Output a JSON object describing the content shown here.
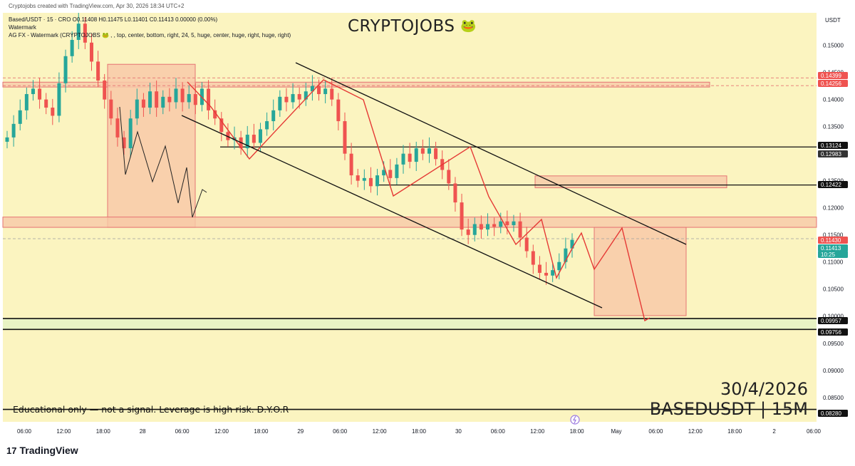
{
  "header": {
    "created": "Cryptojobs created with TradingView.com, Apr 30, 2026 18:34 UTC+2",
    "symbol_line": "Based/USDT · 15 · CRO  O0.11408  H0.11475  L0.11401  C0.11413  0.00000 (0.00%)",
    "watermark": "Watermark",
    "indicator_line": "AG FX - Watermark (CRYPTOJOBS 🐸 , , top, center, bottom, right, 24, 5, huge, center, huge, right, huge, right)"
  },
  "brand": {
    "text": "CRYPTOJOBS",
    "emoji": "🐸"
  },
  "disclaimer": "Educational only — not a signal. Leverage is high risk. D.Y.O.R",
  "stamp": {
    "date": "30/4/2026",
    "symbol": "BASEDUSDT | 15M"
  },
  "footer": {
    "logo": "TradingView"
  },
  "colors": {
    "plot_bg": "#fbf4c0",
    "up": "#26a69a",
    "down": "#ef5350",
    "zone_fill": "#f8c9a8",
    "zone_stroke": "#e57373",
    "green_zone": "#e3f2c4",
    "path_red": "#e53935"
  },
  "chart_data": {
    "type": "candlestick",
    "symbol": "Based/USDT",
    "interval": "15",
    "ohlc_last": {
      "open": 0.11408,
      "high": 0.11475,
      "low": 0.11401,
      "close": 0.11413
    },
    "y_axis": {
      "unit": "USDT",
      "range": [
        0.0805,
        0.156
      ],
      "ticks": [
        "0.15000",
        "0.14500",
        "0.14000",
        "0.13500",
        "0.13000",
        "0.12500",
        "0.12000",
        "0.11500",
        "0.11000",
        "0.10500",
        "0.10000",
        "0.09500",
        "0.09000",
        "0.08500"
      ]
    },
    "x_axis": {
      "ticks": [
        "06:00",
        "12:00",
        "18:00",
        "28",
        "06:00",
        "12:00",
        "18:00",
        "29",
        "06:00",
        "12:00",
        "18:00",
        "30",
        "06:00",
        "12:00",
        "18:00",
        "May",
        "06:00",
        "12:00",
        "18:00",
        "2",
        "06:00"
      ]
    },
    "price_labels": [
      {
        "value": "0.14399",
        "style": "red"
      },
      {
        "value": "0.14256",
        "style": "red"
      },
      {
        "value": "0.13124",
        "style": "black"
      },
      {
        "value": "0.12983",
        "style": "dark"
      },
      {
        "value": "0.12422",
        "style": "black"
      },
      {
        "value": "0.11430",
        "style": "red"
      },
      {
        "value": "0.11413",
        "style": "green"
      },
      {
        "value": "10:25",
        "style": "green"
      },
      {
        "value": "0.09957",
        "style": "black"
      },
      {
        "value": "0.09756",
        "style": "black"
      },
      {
        "value": "0.08280",
        "style": "black"
      }
    ],
    "horizontal_levels": [
      {
        "price": 0.14399,
        "style": "dashed"
      },
      {
        "price": 0.14256,
        "style": "dashed"
      },
      {
        "price": 0.13124,
        "style": "solid"
      },
      {
        "price": 0.12422,
        "style": "solid"
      },
      {
        "price": 0.1143,
        "style": "dashed"
      },
      {
        "price": 0.09957,
        "style": "solid"
      },
      {
        "price": 0.09756,
        "style": "solid"
      },
      {
        "price": 0.0828,
        "style": "solid"
      }
    ],
    "zones": [
      {
        "kind": "supply",
        "price_low": 0.1423,
        "price_high": 0.1432
      },
      {
        "kind": "range-box",
        "price_low": 0.1164,
        "price_high": 0.1465
      },
      {
        "kind": "demand",
        "price_low": 0.1164,
        "price_high": 0.1183
      },
      {
        "kind": "target-box",
        "price_low": 0.1001,
        "price_high": 0.1164
      },
      {
        "kind": "resistance",
        "price_low": 0.1237,
        "price_high": 0.1259
      },
      {
        "kind": "support",
        "price_low": 0.09756,
        "price_high": 0.09957
      }
    ],
    "candles_approx": [
      0.133,
      0.1355,
      0.138,
      0.141,
      0.142,
      0.14,
      0.1385,
      0.137,
      0.143,
      0.148,
      0.151,
      0.154,
      0.1505,
      0.147,
      0.1435,
      0.14,
      0.1365,
      0.133,
      0.131,
      0.1365,
      0.14,
      0.1385,
      0.1415,
      0.1385,
      0.1405,
      0.1395,
      0.142,
      0.1395,
      0.141,
      0.139,
      0.142,
      0.138,
      0.1365,
      0.134,
      0.1325,
      0.133,
      0.131,
      0.1335,
      0.132,
      0.1345,
      0.136,
      0.138,
      0.1405,
      0.1395,
      0.141,
      0.14,
      0.1415,
      0.1425,
      0.141,
      0.142,
      0.14,
      0.136,
      0.13,
      0.126,
      0.125,
      0.1255,
      0.124,
      0.126,
      0.127,
      0.1255,
      0.128,
      0.13,
      0.1285,
      0.131,
      0.13,
      0.131,
      0.129,
      0.127,
      0.1245,
      0.121,
      0.116,
      0.115,
      0.117,
      0.116,
      0.117,
      0.1165,
      0.1175,
      0.1168,
      0.1175,
      0.1145,
      0.112,
      0.1095,
      0.108,
      0.1075,
      0.1085,
      0.11,
      0.1125,
      0.1141
    ]
  }
}
